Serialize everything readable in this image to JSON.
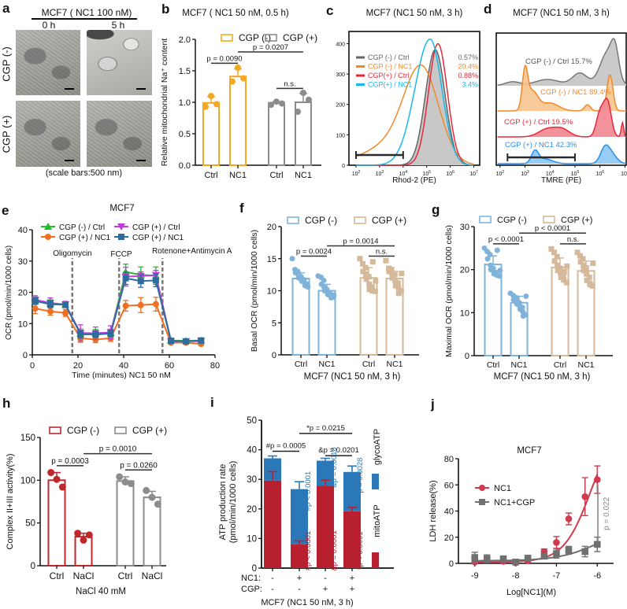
{
  "panel_labels": {
    "a": "a",
    "b": "b",
    "c": "c",
    "d": "d",
    "e": "e",
    "f": "f",
    "g": "g",
    "h": "h",
    "i": "i",
    "j": "j"
  },
  "chart_data": [
    {
      "id": "a",
      "type": "image-grid",
      "title": "MCF7 ( NC1 100 nM)",
      "columns": [
        "0 h",
        "5 h"
      ],
      "rows": [
        "CGP (-)",
        "CGP (+)"
      ],
      "caption": "(scale bars:500 nm)"
    },
    {
      "id": "b",
      "type": "bar",
      "title": "MCF7 ( NC1 50 nM, 0.5 h)",
      "ylabel": "Relative mitochondrial Na⁺ content",
      "ylim": [
        0,
        2.0
      ],
      "yticks": [
        0.0,
        0.5,
        1.0,
        1.5,
        2.0
      ],
      "ytick_labels": [
        "0.0",
        "0.5",
        "1.0",
        "1.5",
        "2.0"
      ],
      "categories": [
        "Ctrl",
        "NC1",
        "Ctrl",
        "NC1"
      ],
      "legend": [
        {
          "name": "CGP (-)",
          "color": "#f5a623"
        },
        {
          "name": "CGP (+)",
          "color": "#8c8c8c"
        }
      ],
      "bars": [
        {
          "group": "CGP (-)",
          "value": 0.99,
          "err": 0.1,
          "points": [
            0.93,
            1.1,
            0.97
          ]
        },
        {
          "group": "CGP (-)",
          "value": 1.41,
          "err": 0.12,
          "points": [
            1.33,
            1.55,
            1.38
          ]
        },
        {
          "group": "CGP (+)",
          "value": 0.99,
          "err": 0.02,
          "points": [
            0.96,
            1.01,
            0.98
          ]
        },
        {
          "group": "CGP (+)",
          "value": 1.0,
          "err": 0.14,
          "points": [
            0.85,
            1.15,
            1.04
          ]
        }
      ],
      "comparisons": [
        {
          "from": 0,
          "to": 1,
          "label": "p = 0.0090",
          "y": 1.62
        },
        {
          "from": 1,
          "to": 3,
          "label": "p = 0.0207",
          "y": 1.8
        },
        {
          "from": 2,
          "to": 3,
          "label": "n.s.",
          "y": 1.22
        }
      ]
    },
    {
      "id": "c",
      "type": "area",
      "title": "MCF7 (NC1 50 nM, 3 h)",
      "xlabel": "Rhod-2 (PE)",
      "xscale": "log",
      "xlim": [
        50,
        10000000
      ],
      "xticks": [
        "10^2",
        "10^3",
        "10^4",
        "10^5",
        "10^6",
        "10^7"
      ],
      "ylim": [
        0,
        440
      ],
      "yticks": [
        0,
        100,
        200,
        300,
        400
      ],
      "gate": {
        "from": 100,
        "to": 10000
      },
      "series": [
        {
          "name": "CGP (-) / Ctrl",
          "color": "#666666",
          "fill": "#c8c8c8",
          "percent": "0.57%",
          "peak_x": 230000,
          "peak_y": 380,
          "width": 0.42
        },
        {
          "name": "CGP (-) / NC1",
          "color": "#f0892a",
          "fill": "none",
          "percent": "20.4%",
          "peak_x": 55000,
          "peak_y": 330,
          "width": 0.75
        },
        {
          "name": "CGP(+) / Ctrl",
          "color": "#e8283a",
          "fill": "none",
          "percent": "0.88%",
          "peak_x": 300000,
          "peak_y": 400,
          "width": 0.4
        },
        {
          "name": "CGP(+) / NC1",
          "color": "#1ab8ea",
          "fill": "none",
          "percent": "3.4%",
          "peak_x": 140000,
          "peak_y": 415,
          "width": 0.5
        }
      ]
    },
    {
      "id": "d",
      "type": "area",
      "title": "MCF7 (NC1 50 nM, 3 h)",
      "xlabel": "TMRE (PE)",
      "xscale": "log",
      "xticks": [
        "10^2",
        "10^3",
        "10^4",
        "10^5",
        "10^6",
        "10^7"
      ],
      "gate": {
        "from": 100,
        "to": 100000
      },
      "series": [
        {
          "name": "CGP (-) / Ctrl",
          "percent": "15.7%",
          "color": "#777777",
          "fill": "#c4c4c4",
          "label_color": "#555555"
        },
        {
          "name": "CGP (-) / NC1",
          "percent": "89.4%",
          "color": "#f0892a",
          "fill": "#f7c48f",
          "label_color": "#f0892a"
        },
        {
          "name": "CGP (+) / Ctrl",
          "percent": "19.5%",
          "color": "#e8283a",
          "fill": "#f2868f",
          "label_color": "#e8283a"
        },
        {
          "name": "CGP (+) / NC1",
          "percent": "42.3%",
          "color": "#2a8ee8",
          "fill": "#8cc6f4",
          "label_color": "#2a8ee8"
        }
      ]
    },
    {
      "id": "e",
      "type": "line",
      "title": "MCF7",
      "xlabel": "Time (minutes) NC1 50 nM",
      "ylabel": "OCR (pmol/min/1000 cells)",
      "xlim": [
        0,
        80
      ],
      "ylim": [
        0,
        40
      ],
      "xticks": [
        0,
        20,
        40,
        60,
        80
      ],
      "yticks": [
        0,
        10,
        20,
        30,
        40
      ],
      "injections": [
        {
          "x": 17.5,
          "label": "Oligomycin"
        },
        {
          "x": 38,
          "label": "FCCP"
        },
        {
          "x": 57,
          "label": "Rotenone+Antimycin A"
        }
      ],
      "x": [
        1.3,
        7.9,
        14.5,
        21.1,
        27.7,
        34.3,
        40.9,
        47.5,
        54.1,
        60.7,
        67.3,
        73.9
      ],
      "series": [
        {
          "name": "CGP (-) / Ctrl",
          "color": "#1fbf2b",
          "marker": "triangle-up",
          "values": [
            17.3,
            16.4,
            16.0,
            6.8,
            6.9,
            7.0,
            26.5,
            25.6,
            25.3,
            4.6,
            4.5,
            4.6
          ],
          "err": [
            1.2,
            1.2,
            0.9,
            1.5,
            1.2,
            1.2,
            2.5,
            2.5,
            2.8,
            0.6,
            0.5,
            0.5
          ]
        },
        {
          "name": "CGP (+) / Ctrl",
          "color": "#c03be0",
          "marker": "triangle-down",
          "values": [
            17.6,
            16.6,
            16.1,
            7.0,
            6.9,
            7.2,
            25.0,
            25.2,
            25.5,
            4.3,
            4.3,
            4.4
          ],
          "err": [
            1.3,
            1.6,
            1.0,
            2.6,
            2.0,
            2.1,
            3.0,
            1.3,
            1.5,
            0.7,
            0.6,
            0.6
          ]
        },
        {
          "name": "CGP (+) / NC1",
          "color": "#f07022",
          "marker": "circle",
          "values": [
            14.8,
            13.9,
            13.4,
            5.3,
            4.9,
            5.3,
            15.7,
            15.9,
            16.2,
            3.9,
            3.9,
            3.5
          ],
          "err": [
            1.6,
            1.2,
            1.1,
            1.3,
            1.0,
            1.0,
            1.7,
            2.4,
            2.2,
            0.4,
            0.4,
            0.5
          ]
        },
        {
          "name": "CGP (+) / NC1",
          "color": "#2e6c9e",
          "marker": "square",
          "values": [
            17.2,
            16.2,
            16.0,
            6.6,
            6.5,
            6.8,
            24.5,
            23.6,
            23.8,
            4.5,
            4.3,
            4.6
          ],
          "err": [
            1.0,
            1.0,
            0.8,
            1.2,
            1.0,
            1.0,
            2.0,
            2.0,
            2.0,
            0.5,
            0.5,
            0.5
          ]
        }
      ],
      "legend_order": [
        0,
        1,
        2,
        3
      ]
    },
    {
      "id": "f",
      "type": "bar",
      "ylabel": "Basal OCR (pmol/min/1000 cells)",
      "xlabel": "MCF7  (NC1 50 nM, 3 h)",
      "ylim": [
        0,
        20
      ],
      "yticks": [
        0,
        5,
        10,
        15,
        20
      ],
      "ytick_labels": [
        "0",
        "5",
        "10",
        "15",
        "20"
      ],
      "categories": [
        "Ctrl",
        "NC1",
        "Ctrl",
        "NC1"
      ],
      "legend": [
        {
          "name": "CGP (-)",
          "color": "#7fb3da"
        },
        {
          "name": "CGP (+)",
          "color": "#d5b99a"
        }
      ],
      "marker": [
        "circle",
        "circle",
        "square",
        "square"
      ],
      "bars": [
        {
          "group": "CGP (-)",
          "value": 11.9,
          "err": 0.9,
          "points": [
            15.0,
            13.3,
            13.0,
            12.8,
            12.5,
            12.2,
            12.0,
            11.8,
            11.7,
            11.5,
            11.2,
            11.0,
            10.8,
            10.6
          ]
        },
        {
          "group": "CGP (-)",
          "value": 10.0,
          "err": 1.0,
          "points": [
            12.3,
            12.1,
            11.6,
            11.0,
            10.5,
            10.2,
            10.0,
            9.8,
            9.6,
            9.4,
            9.2,
            9.0,
            8.9,
            9.3
          ]
        },
        {
          "group": "CGP (+)",
          "value": 12.0,
          "err": 1.6,
          "points": [
            15.0,
            14.2,
            13.6,
            13.0,
            12.6,
            12.2,
            11.8,
            11.0,
            10.6,
            10.2,
            10.0,
            9.9,
            14.5,
            11.5
          ]
        },
        {
          "group": "CGP (+)",
          "value": 11.9,
          "err": 1.1,
          "points": [
            14.7,
            13.5,
            13.3,
            13.0,
            12.8,
            12.5,
            12.0,
            11.6,
            11.2,
            10.8,
            10.5,
            10.0,
            9.6,
            12.7
          ]
        }
      ],
      "comparisons": [
        {
          "from": 0,
          "to": 1,
          "label": "p = 0.0024",
          "y": 15.4
        },
        {
          "from": 1,
          "to": 3,
          "label": "p = 0.0014",
          "y": 17.0
        },
        {
          "from": 2,
          "to": 3,
          "label": "n.s.",
          "y": 15.4
        }
      ]
    },
    {
      "id": "g",
      "type": "bar",
      "ylabel": "Maximal OCR (pmol/min/1000 cells)",
      "xlabel": "MCF7 (NC1 50 nM, 3 h)",
      "ylim": [
        0,
        30
      ],
      "yticks": [
        0,
        10,
        20,
        30
      ],
      "ytick_labels": [
        "0",
        "10",
        "20",
        "30"
      ],
      "categories": [
        "Ctrl",
        "NC1",
        "Ctrl",
        "NC1"
      ],
      "legend": [
        {
          "name": "CGP (-)",
          "color": "#7fb3da"
        },
        {
          "name": "CGP (+)",
          "color": "#d5b99a"
        }
      ],
      "marker": [
        "circle",
        "circle",
        "square",
        "square"
      ],
      "bars": [
        {
          "group": "CGP (-)",
          "value": 21.2,
          "err": 2.0,
          "points": [
            25.0,
            24.2,
            23.5,
            22.5,
            21.0,
            20.3,
            20.0,
            19.6,
            19.3,
            19.0,
            18.7,
            18.5,
            24.5,
            19.8
          ]
        },
        {
          "group": "CGP (-)",
          "value": 12.3,
          "err": 1.5,
          "points": [
            14.5,
            14.0,
            13.5,
            13.0,
            12.6,
            12.3,
            12.0,
            11.6,
            11.2,
            10.8,
            10.2,
            9.5,
            9.2,
            13.8
          ]
        },
        {
          "group": "CGP (+)",
          "value": 20.5,
          "err": 2.2,
          "points": [
            24.8,
            24.0,
            23.0,
            22.0,
            21.0,
            20.3,
            19.8,
            19.3,
            18.8,
            18.2,
            17.6,
            17.0,
            19.5,
            20.8
          ]
        },
        {
          "group": "CGP (+)",
          "value": 19.7,
          "err": 2.3,
          "points": [
            24.0,
            23.2,
            22.5,
            21.8,
            21.0,
            20.4,
            19.8,
            19.0,
            18.2,
            17.5,
            16.8,
            16.2,
            16.5,
            21.5
          ]
        }
      ],
      "comparisons": [
        {
          "from": 0,
          "to": 1,
          "label": "p < 0.0001",
          "y": 26.0
        },
        {
          "from": 1,
          "to": 3,
          "label": "p < 0.0001",
          "y": 28.5
        },
        {
          "from": 2,
          "to": 3,
          "label": "n.s.",
          "y": 26.0
        }
      ]
    },
    {
      "id": "h",
      "type": "bar",
      "ylabel": "Complex II+III activity(%)",
      "xlabel": "NaCl 40 mM",
      "ylim": [
        0,
        150
      ],
      "yticks": [
        0,
        50,
        100,
        150
      ],
      "ytick_labels": [
        "0",
        "50",
        "100",
        "150"
      ],
      "categories": [
        "Ctrl",
        "NaCl",
        "Ctrl",
        "NaCl"
      ],
      "legend": [
        {
          "name": "CGP (-)",
          "color": "#c0272d"
        },
        {
          "name": "CGP (+)",
          "color": "#8c8c8c"
        }
      ],
      "bars": [
        {
          "group": "CGP (-)",
          "value": 100,
          "err": 9,
          "points": [
            109,
            101,
            92
          ]
        },
        {
          "group": "CGP (-)",
          "value": 34,
          "err": 4,
          "points": [
            38,
            30,
            36
          ]
        },
        {
          "group": "CGP (+)",
          "value": 99,
          "err": 5,
          "points": [
            104,
            98,
            96
          ]
        },
        {
          "group": "CGP (+)",
          "value": 80,
          "err": 7,
          "points": [
            88,
            80,
            72
          ]
        }
      ],
      "comparisons": [
        {
          "from": 0,
          "to": 1,
          "label": "p = 0.0003",
          "y": 117
        },
        {
          "from": 1,
          "to": 3,
          "label": "p = 0.0010",
          "y": 131
        },
        {
          "from": 2,
          "to": 3,
          "label": "p = 0.0260",
          "y": 112
        }
      ]
    },
    {
      "id": "i",
      "type": "bar",
      "stacked": true,
      "ylabel": "ATP production rate (pmol/min/1000 cells)",
      "xlabel": "MCF7  (NC1 50 nM, 3 h)",
      "ylim": [
        0,
        50
      ],
      "yticks": [
        0,
        10,
        20,
        30,
        40,
        50
      ],
      "ytick_labels": [
        "0",
        "10",
        "20",
        "30",
        "40",
        "50"
      ],
      "conditions": [
        {
          "NC1": "-",
          "CGP": "-"
        },
        {
          "NC1": "+",
          "CGP": "-"
        },
        {
          "NC1": "-",
          "CGP": "+"
        },
        {
          "NC1": "+",
          "CGP": "+"
        }
      ],
      "row_labels": [
        "NC1:",
        "CGP:"
      ],
      "series": [
        {
          "name": "mitoATP",
          "color": "#b8202f",
          "values": [
            29.6,
            8.0,
            27.9,
            19.2
          ],
          "err": [
            3.0,
            1.2,
            1.8,
            1.3
          ]
        },
        {
          "name": "glycoATP",
          "color": "#2b78b8",
          "values": [
            7.5,
            18.7,
            8.4,
            13.3
          ],
          "err": [
            0.8,
            2.5,
            0.8,
            2.0
          ]
        }
      ],
      "annotations_red": [
        "#p < 0.0001",
        "&p = 0.0001",
        "*p < 0.0001"
      ],
      "annotations_blue": [
        "#p < 0.0001",
        "&p = 0.0018",
        "*p = 0.0028"
      ],
      "comparisons": [
        {
          "from": 0,
          "to": 1,
          "label": "#p = 0.0005",
          "y": 39.5
        },
        {
          "from": 1,
          "to": 3,
          "label": "*p = 0.0215",
          "y": 45.5
        },
        {
          "from": 2,
          "to": 3,
          "label": "&p = 0.0201",
          "y": 38.0
        }
      ]
    },
    {
      "id": "j",
      "type": "line",
      "title": "MCF7",
      "xlabel": "Log[NC1](M)",
      "ylabel": "LDH release(%)",
      "xlim": [
        -9.4,
        -5.6
      ],
      "ylim": [
        0,
        80
      ],
      "xticks": [
        -9,
        -8,
        -7,
        -6
      ],
      "yticks": [
        0,
        20,
        40,
        60,
        80
      ],
      "x": [
        -9,
        -8.7,
        -8.3,
        -8,
        -7.7,
        -7.3,
        -7,
        -6.7,
        -6.3,
        -6
      ],
      "series": [
        {
          "name": "NC1",
          "color": "#d03a4e",
          "marker": "circle",
          "values": [
            1,
            3,
            1.5,
            0.5,
            2,
            9,
            16,
            34,
            51,
            64
          ],
          "err": [
            1,
            2,
            1,
            1,
            1,
            2,
            4.5,
            4.5,
            14.5,
            10.5
          ],
          "fit": "sigmoid"
        },
        {
          "name": "NC1+CGP",
          "color": "#707070",
          "marker": "square",
          "values": [
            4.5,
            3.5,
            3.5,
            1.0,
            4.0,
            5.5,
            7.5,
            10.0,
            9.0,
            14.5
          ],
          "err": [
            4,
            3,
            1.5,
            1,
            1.5,
            1.5,
            3.5,
            3.0,
            4.0,
            5.5
          ],
          "fit": "sigmoid"
        }
      ],
      "annotation": "p = 0.022"
    }
  ]
}
